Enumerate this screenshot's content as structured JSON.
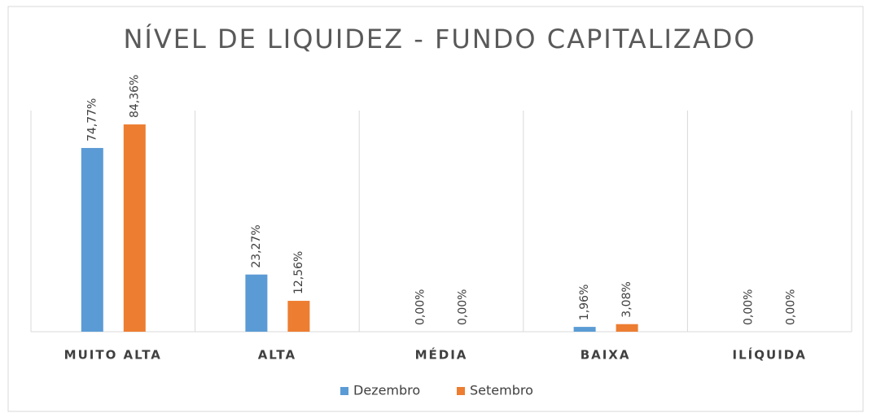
{
  "chart_data": {
    "type": "bar",
    "title": "NÍVEL DE LIQUIDEZ - FUNDO CAPITALIZADO",
    "categories": [
      "MUITO ALTA",
      "ALTA",
      "MÉDIA",
      "BAIXA",
      "ILÍQUIDA"
    ],
    "series": [
      {
        "name": "Dezembro",
        "color": "#5b9bd5",
        "values": [
          74.77,
          23.27,
          0,
          1.96,
          0
        ],
        "value_labels": [
          "74,77%",
          "23,27%",
          "0,00%",
          "1,96%",
          "0,00%"
        ]
      },
      {
        "name": "Setembro",
        "color": "#ed7d31",
        "values": [
          84.36,
          12.56,
          0,
          3.08,
          0
        ],
        "value_labels": [
          "84,36%",
          "12,56%",
          "0,00%",
          "3,08%",
          "0,00%"
        ]
      }
    ],
    "ylim": [
      0,
      90
    ],
    "legend": "bottom"
  }
}
